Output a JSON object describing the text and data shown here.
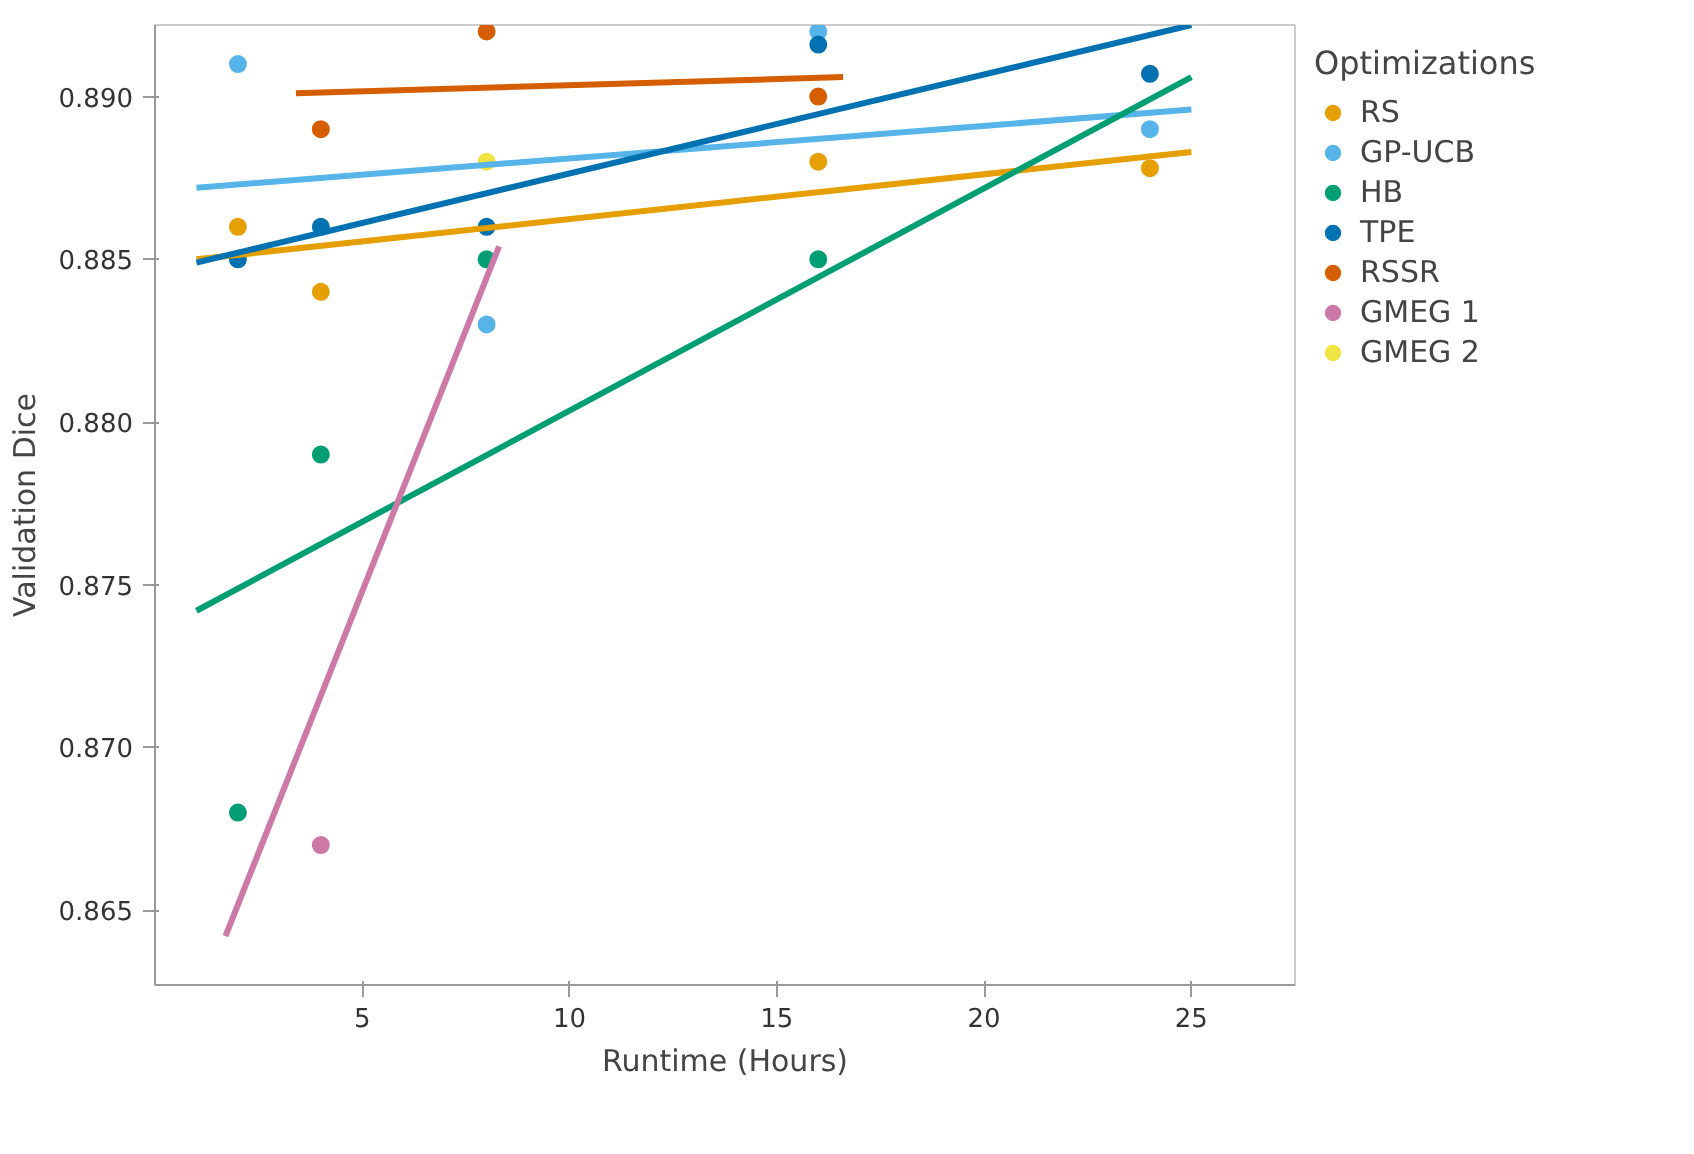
{
  "chart_data": {
    "type": "scatter",
    "xlabel": "Runtime (Hours)",
    "ylabel": "Validation Dice",
    "legend_title": "Optimizations",
    "xlim": [
      0,
      27.5
    ],
    "xticks": [
      5,
      10,
      15,
      20,
      25
    ],
    "ylim": [
      0.8627,
      0.8922
    ],
    "yticks": [
      0.865,
      {
        "value": 0.87,
        "label": "0.870"
      },
      0.875,
      {
        "value": 0.88,
        "label": "0.880"
      },
      0.885,
      {
        "value": 0.89,
        "label": "0.890"
      }
    ],
    "grid": false,
    "legend": "right",
    "marker": "circle",
    "series": [
      {
        "name": "RS",
        "color": "#e69f00",
        "x": [
          2,
          4,
          16,
          24
        ],
        "values": [
          0.886,
          0.884,
          0.888,
          0.8878
        ]
      },
      {
        "name": "GP-UCB",
        "color": "#56b4e9",
        "x": [
          2,
          8,
          16,
          24
        ],
        "values": [
          0.891,
          0.883,
          0.892,
          0.889
        ]
      },
      {
        "name": "HB",
        "color": "#009e73",
        "x": [
          2,
          4,
          8,
          16
        ],
        "values": [
          0.868,
          0.879,
          0.885,
          0.885
        ]
      },
      {
        "name": "TPE",
        "color": "#0072b2",
        "x": [
          2,
          4,
          8,
          16,
          24
        ],
        "values": [
          0.885,
          0.886,
          0.886,
          0.8916,
          0.8907
        ]
      },
      {
        "name": "RSSR",
        "color": "#d55e00",
        "x": [
          4,
          8,
          16
        ],
        "values": [
          0.889,
          0.892,
          0.89
        ]
      },
      {
        "name": "GMEG 1",
        "color": "#cc79a7",
        "x": [
          4
        ],
        "values": [
          0.867
        ]
      },
      {
        "name": "GMEG 2",
        "color": "#f0e442",
        "x": [
          8
        ],
        "values": [
          0.888
        ]
      },
      {
        "type": "line",
        "marker": "none",
        "color": "#e69f00",
        "x": [
          1,
          25
        ],
        "values": [
          0.885,
          0.8883
        ]
      },
      {
        "type": "line",
        "marker": "none",
        "color": "#56b4e9",
        "x": [
          1,
          25
        ],
        "values": [
          0.8872,
          0.8896
        ]
      },
      {
        "type": "line",
        "marker": "none",
        "color": "#009e73",
        "x": [
          1,
          25
        ],
        "values": [
          0.8742,
          0.8906
        ]
      },
      {
        "type": "line",
        "marker": "none",
        "color": "#0072b2",
        "x": [
          1,
          25
        ],
        "values": [
          0.8849,
          0.8922
        ]
      },
      {
        "type": "line",
        "marker": "none",
        "color": "#d55e00",
        "x": [
          3.4,
          16.6
        ],
        "values": [
          0.8901,
          0.8906
        ]
      },
      {
        "type": "line",
        "marker": "none",
        "color": "#cc79a7",
        "x": [
          1.7,
          8.3
        ],
        "values": [
          0.8642,
          0.8854
        ]
      }
    ]
  }
}
